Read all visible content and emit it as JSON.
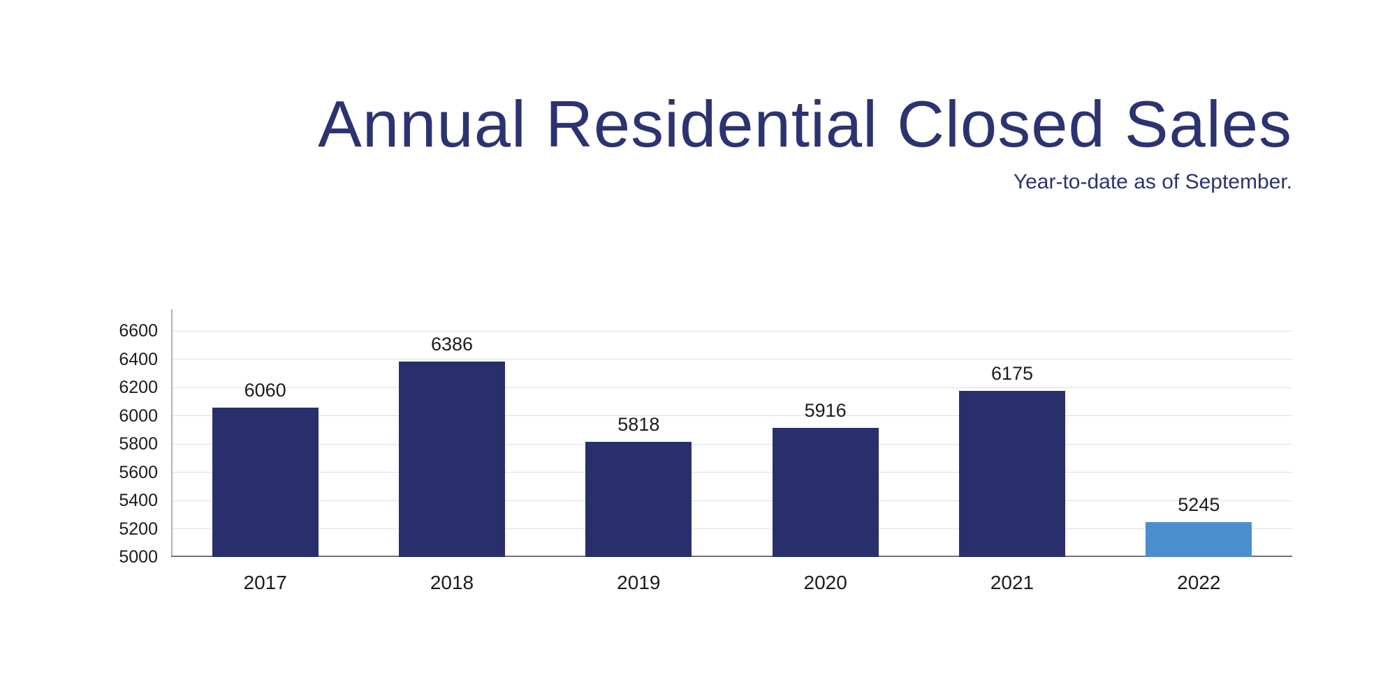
{
  "header": {
    "title": "Annual Residential Closed Sales",
    "subtitle": "Year-to-date as of September."
  },
  "chart_data": {
    "type": "bar",
    "title": "Annual Residential Closed Sales",
    "subtitle": "Year-to-date as of September.",
    "categories": [
      "2017",
      "2018",
      "2019",
      "2020",
      "2021",
      "2022"
    ],
    "values": [
      6060,
      6386,
      5818,
      5916,
      6175,
      5245
    ],
    "value_labels": [
      "6060",
      "6386",
      "5818",
      "5916",
      "6175",
      "5245"
    ],
    "bar_colors": [
      "#292f6b",
      "#292f6b",
      "#292f6b",
      "#292f6b",
      "#292f6b",
      "#4b8ece"
    ],
    "highlight_category": "2022",
    "yticks": [
      5000,
      5200,
      5400,
      5600,
      5800,
      6000,
      6200,
      6400,
      6600
    ],
    "ylim": [
      5000,
      6755
    ],
    "grid": true,
    "legend": false,
    "xlabel": "",
    "ylabel": ""
  },
  "colors": {
    "title_text": "#2b3371",
    "bar_default": "#292f6b",
    "bar_highlight": "#4b8ece",
    "axis_text": "#1c1c1c",
    "gridline": "#d8e1ee",
    "y_axis_line": "#aeb1b7",
    "x_axis_line": "#6f7073",
    "background": "#ffffff"
  }
}
